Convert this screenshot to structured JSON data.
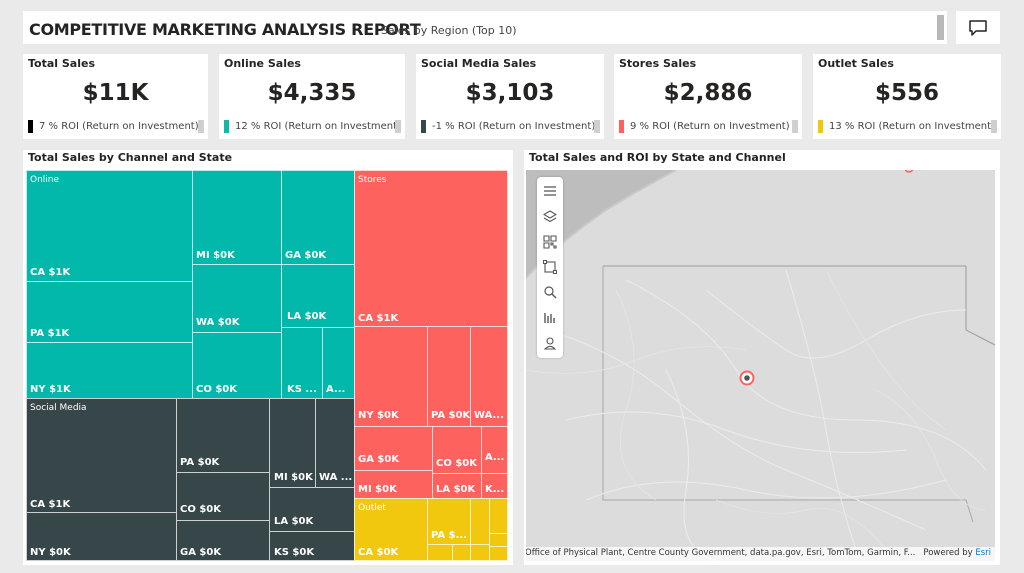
{
  "header": {
    "title": "COMPETITIVE MARKETING ANALYSIS REPORT",
    "subtitle": "Sales by Region (Top 10)"
  },
  "kpis": [
    {
      "title": "Total Sales",
      "value": "$11K",
      "roi": "7 % ROI (Return on Investment)",
      "color": "#000000"
    },
    {
      "title": "Online Sales",
      "value": "$4,335",
      "roi": "12 % ROI (Return on Investment)",
      "color": "#13B8A4"
    },
    {
      "title": "Social Media Sales",
      "value": "$3,103",
      "roi": "-1 % ROI (Return on Investment)",
      "color": "#374649"
    },
    {
      "title": "Stores Sales",
      "value": "$2,886",
      "roi": "9 % ROI (Return on Investment)",
      "color": "#FD625E"
    },
    {
      "title": "Outlet Sales",
      "value": "$556",
      "roi": "13 % ROI (Return on Investment)",
      "color": "#F2C80F"
    }
  ],
  "treemap": {
    "title": "Total Sales by Channel and State",
    "groups": [
      {
        "name": "Online",
        "color": "#01B8AA"
      },
      {
        "name": "Social Media",
        "color": "#374649"
      },
      {
        "name": "Stores",
        "color": "#FD625E"
      },
      {
        "name": "Outlet",
        "color": "#F2C80F"
      }
    ],
    "labels": {
      "online": [
        "CA $1K",
        "PA $1K",
        "NY $1K",
        "MI $0K",
        "WA $0K",
        "CO $0K",
        "GA $0K",
        "LA $0K",
        "KS ...",
        "A..."
      ],
      "social": [
        "CA $1K",
        "NY $0K",
        "PA $0K",
        "CO $0K",
        "GA $0K",
        "MI $0K",
        "WA ...",
        "LA $0K",
        "KS $0K"
      ],
      "stores": [
        "CA $1K",
        "NY $0K",
        "PA $0K",
        "WA...",
        "GA $0K",
        "CO $0K",
        "A...",
        "MI $0K",
        "LA $0K",
        "K..."
      ],
      "outlet": [
        "CA $0K",
        "PA $..."
      ]
    }
  },
  "map": {
    "title": "Total Sales and ROI by State and Channel",
    "attribution": "PSU Office of Physical Plant, Centre County Government, data.pa.gov, Esri, TomTom, Garmin, F...",
    "powered_by": "Powered by",
    "esri": "Esri",
    "point_color": "#FD625E",
    "tools": [
      "menu-icon",
      "layers-icon",
      "qr-code-icon",
      "select-rectangle-icon",
      "zoom-icon",
      "bar-chart-icon",
      "user-icon"
    ]
  }
}
